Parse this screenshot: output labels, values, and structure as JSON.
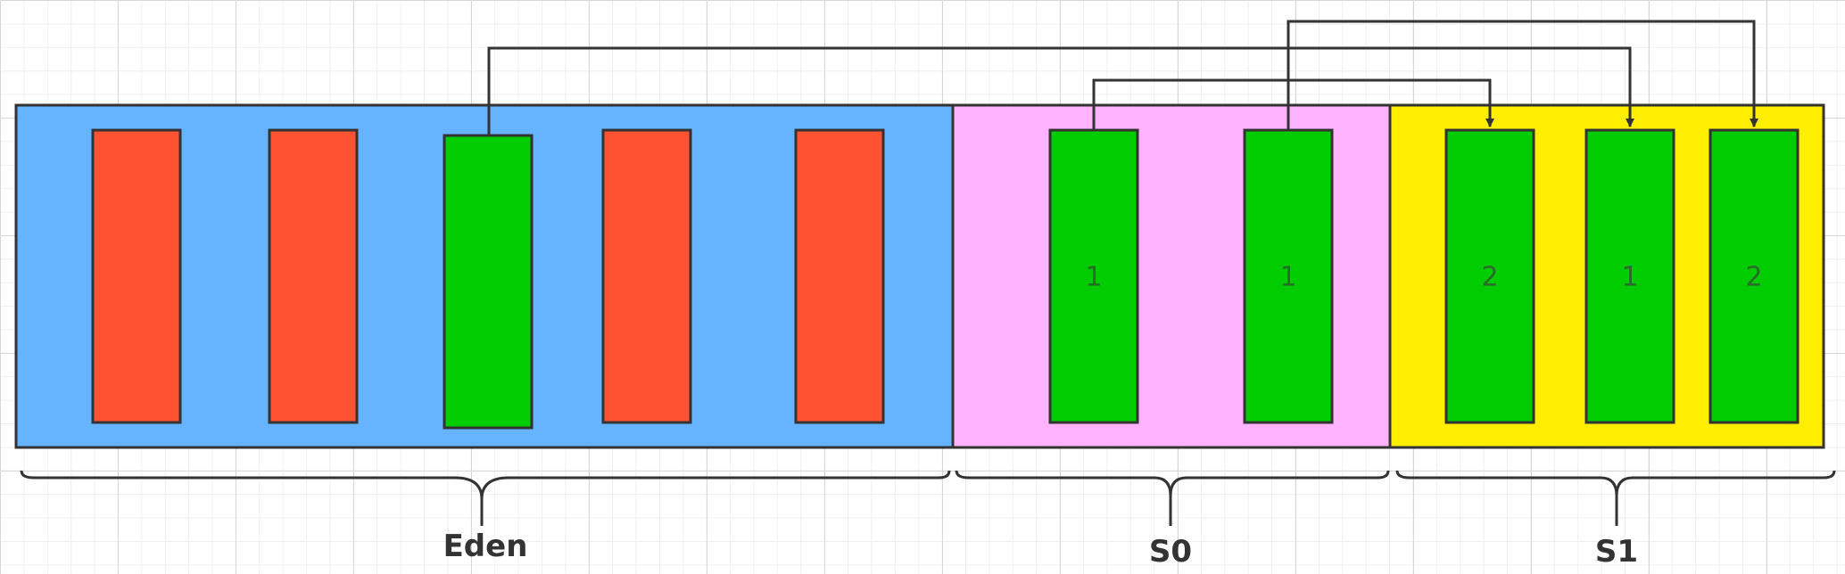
{
  "colors": {
    "eden": "#66b3ff",
    "s0": "#ffb3ff",
    "s1": "#ffee00",
    "dead": "#ff5233",
    "live": "#00cc00",
    "stroke": "#333333"
  },
  "regions": [
    {
      "id": "eden",
      "label": "Eden"
    },
    {
      "id": "s0",
      "label": "S0"
    },
    {
      "id": "s1",
      "label": "S1"
    }
  ],
  "blocks": [
    {
      "id": "eden-1",
      "region": "eden",
      "state": "dead",
      "label": ""
    },
    {
      "id": "eden-2",
      "region": "eden",
      "state": "dead",
      "label": ""
    },
    {
      "id": "eden-3",
      "region": "eden",
      "state": "live",
      "label": ""
    },
    {
      "id": "eden-4",
      "region": "eden",
      "state": "dead",
      "label": ""
    },
    {
      "id": "eden-5",
      "region": "eden",
      "state": "dead",
      "label": ""
    },
    {
      "id": "s0-1",
      "region": "s0",
      "state": "live",
      "label": "1"
    },
    {
      "id": "s0-2",
      "region": "s0",
      "state": "live",
      "label": "1"
    },
    {
      "id": "s1-1",
      "region": "s1",
      "state": "live",
      "label": "2"
    },
    {
      "id": "s1-2",
      "region": "s1",
      "state": "live",
      "label": "1"
    },
    {
      "id": "s1-3",
      "region": "s1",
      "state": "live",
      "label": "2"
    }
  ],
  "arrows": [
    {
      "from": "eden-3",
      "to": "s1-2"
    },
    {
      "from": "s0-1",
      "to": "s1-1"
    },
    {
      "from": "s0-2",
      "to": "s1-3"
    }
  ]
}
